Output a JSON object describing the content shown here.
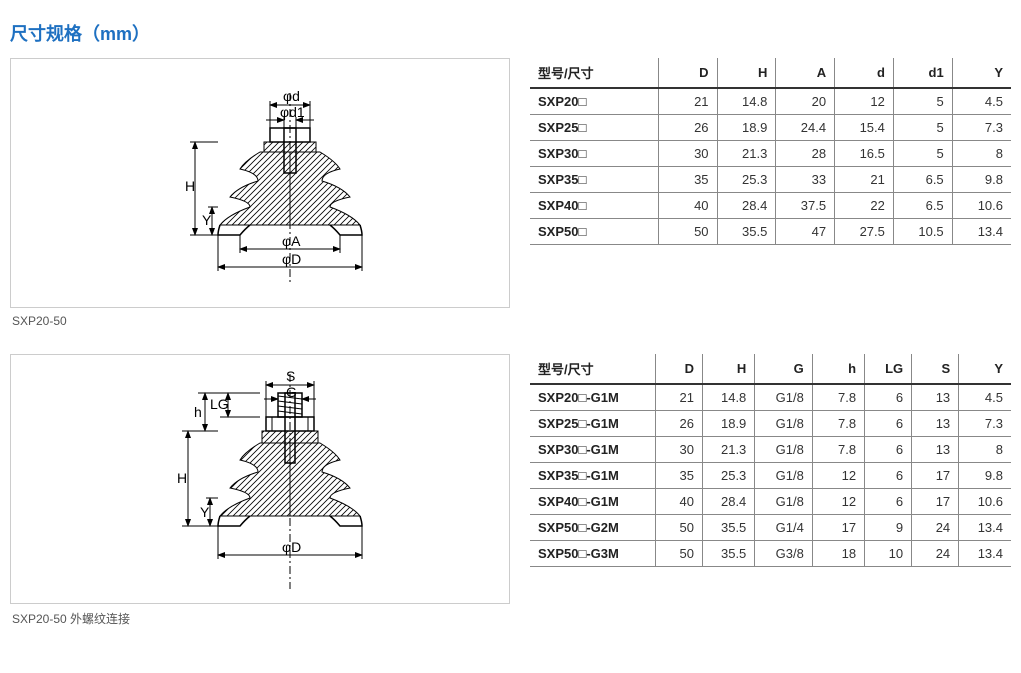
{
  "title": "尺寸规格（mm）",
  "diagram1": {
    "caption": "SXP20-50",
    "labels": {
      "phi_d": "φd",
      "phi_d1": "φd1",
      "phi_A": "φA",
      "phi_D": "φD",
      "H": "H",
      "Y": "Y"
    }
  },
  "diagram2": {
    "caption": "SXP20-50 外螺纹连接",
    "labels": {
      "S": "S",
      "G": "G",
      "LG": "LG",
      "h": "h",
      "H": "H",
      "Y": "Y",
      "phi_D": "φD"
    }
  },
  "table1": {
    "headers": [
      "型号/尺寸",
      "D",
      "H",
      "A",
      "d",
      "d1",
      "Y"
    ],
    "rows": [
      [
        "SXP20□",
        "21",
        "14.8",
        "20",
        "12",
        "5",
        "4.5"
      ],
      [
        "SXP25□",
        "26",
        "18.9",
        "24.4",
        "15.4",
        "5",
        "7.3"
      ],
      [
        "SXP30□",
        "30",
        "21.3",
        "28",
        "16.5",
        "5",
        "8"
      ],
      [
        "SXP35□",
        "35",
        "25.3",
        "33",
        "21",
        "6.5",
        "9.8"
      ],
      [
        "SXP40□",
        "40",
        "28.4",
        "37.5",
        "22",
        "6.5",
        "10.6"
      ],
      [
        "SXP50□",
        "50",
        "35.5",
        "47",
        "27.5",
        "10.5",
        "13.4"
      ]
    ],
    "col_widths": [
      "120",
      "55",
      "55",
      "55",
      "55",
      "55",
      "55"
    ]
  },
  "table2": {
    "headers": [
      "型号/尺寸",
      "D",
      "H",
      "G",
      "h",
      "LG",
      "S",
      "Y"
    ],
    "rows": [
      [
        "SXP20□-G1M",
        "21",
        "14.8",
        "G1/8",
        "7.8",
        "6",
        "13",
        "4.5"
      ],
      [
        "SXP25□-G1M",
        "26",
        "18.9",
        "G1/8",
        "7.8",
        "6",
        "13",
        "7.3"
      ],
      [
        "SXP30□-G1M",
        "30",
        "21.3",
        "G1/8",
        "7.8",
        "6",
        "13",
        "8"
      ],
      [
        "SXP35□-G1M",
        "35",
        "25.3",
        "G1/8",
        "12",
        "6",
        "17",
        "9.8"
      ],
      [
        "SXP40□-G1M",
        "40",
        "28.4",
        "G1/8",
        "12",
        "6",
        "17",
        "10.6"
      ],
      [
        "SXP50□-G2M",
        "50",
        "35.5",
        "G1/4",
        "17",
        "9",
        "24",
        "13.4"
      ],
      [
        "SXP50□-G3M",
        "50",
        "35.5",
        "G3/8",
        "18",
        "10",
        "24",
        "13.4"
      ]
    ],
    "col_widths": [
      "120",
      "45",
      "50",
      "55",
      "50",
      "45",
      "45",
      "50"
    ]
  }
}
